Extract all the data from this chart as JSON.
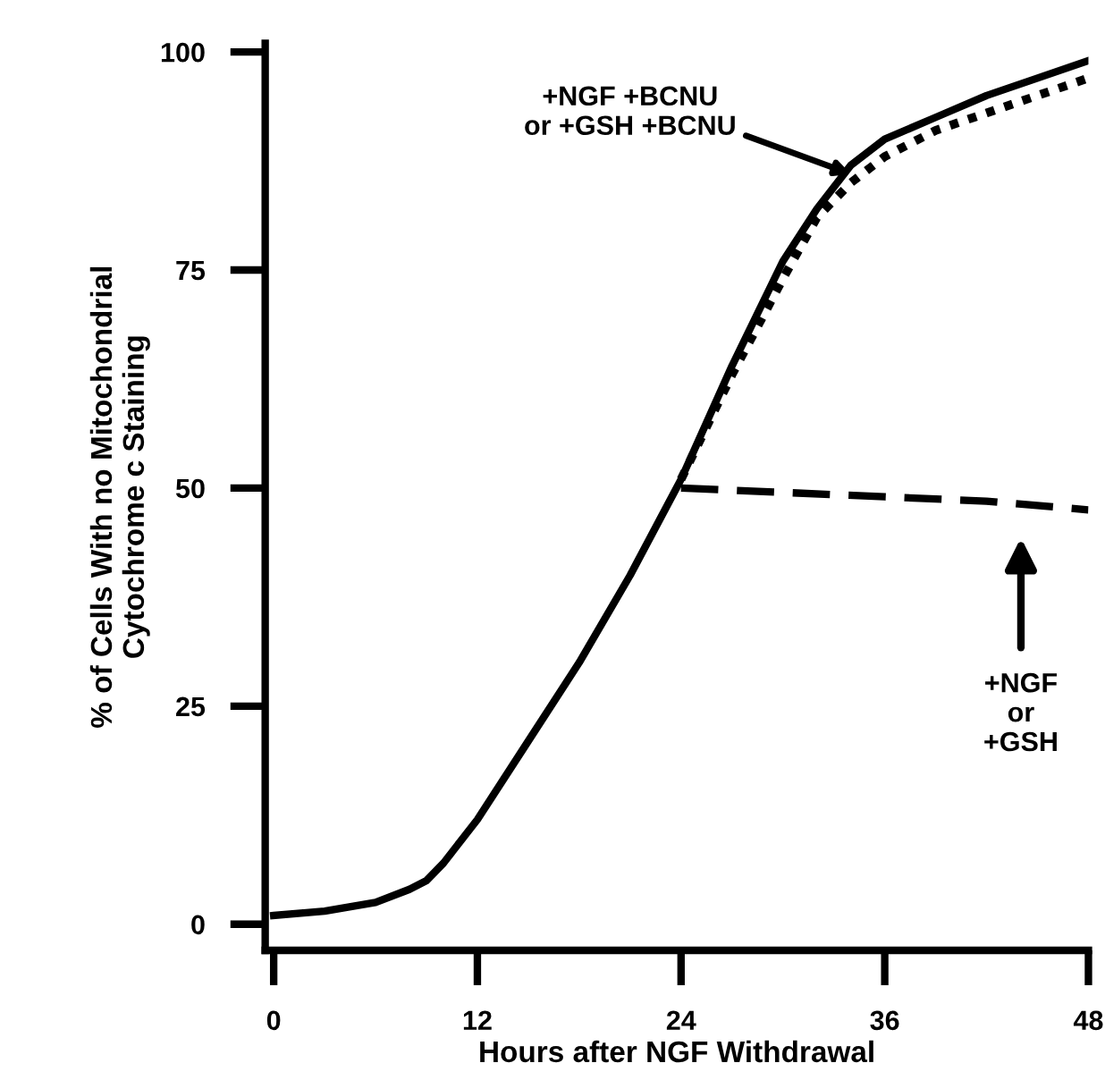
{
  "chart_data": {
    "type": "line",
    "xlabel": "Hours after NGF Withdrawal",
    "ylabel": "% of Cells With no Mitochondrial\nCytochrome c Staining",
    "xlim": [
      -0.5,
      48
    ],
    "ylim": [
      -3,
      101
    ],
    "xticks": [
      0,
      12,
      24,
      36,
      48
    ],
    "yticks": [
      0,
      25,
      50,
      75,
      100
    ],
    "grid": false,
    "legend": false,
    "marker": "none",
    "series": [
      {
        "color": "#000000",
        "line_style": "solid",
        "x": [
          0,
          3,
          6,
          8,
          9,
          10,
          12,
          15,
          18,
          21,
          24,
          27,
          30,
          32,
          34,
          36,
          39,
          42,
          45,
          48
        ],
        "values": [
          1,
          1.5,
          2.5,
          4,
          5,
          7,
          12,
          21,
          30,
          40,
          51,
          64,
          76,
          82,
          87,
          90,
          92.5,
          95,
          97,
          99
        ]
      },
      {
        "color": "#000000",
        "line_style": "dotted",
        "x": [
          24,
          27,
          30,
          32,
          34,
          36,
          39,
          42,
          45,
          48
        ],
        "values": [
          51,
          63,
          74,
          81,
          85,
          88,
          91,
          93,
          95,
          97
        ]
      },
      {
        "color": "#000000",
        "line_style": "dashed",
        "x": [
          24,
          30,
          36,
          42,
          48
        ],
        "values": [
          50,
          49.5,
          49,
          48.5,
          47.5
        ]
      }
    ],
    "annotations": [
      {
        "text": "+NGF +BCNU\nor +GSH +BCNU",
        "x": 34,
        "y": 86
      },
      "+NGF\nor\n+GSH"
    ]
  }
}
